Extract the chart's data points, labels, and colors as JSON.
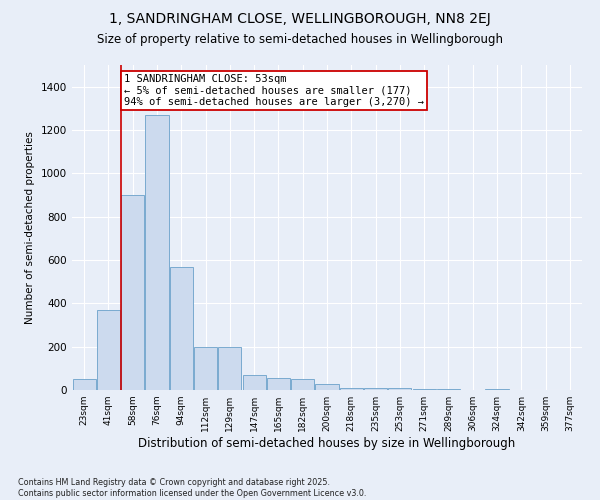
{
  "title": "1, SANDRINGHAM CLOSE, WELLINGBOROUGH, NN8 2EJ",
  "subtitle": "Size of property relative to semi-detached houses in Wellingborough",
  "xlabel": "Distribution of semi-detached houses by size in Wellingborough",
  "ylabel": "Number of semi-detached properties",
  "bins": [
    "23sqm",
    "41sqm",
    "58sqm",
    "76sqm",
    "94sqm",
    "112sqm",
    "129sqm",
    "147sqm",
    "165sqm",
    "182sqm",
    "200sqm",
    "218sqm",
    "235sqm",
    "253sqm",
    "271sqm",
    "289sqm",
    "306sqm",
    "324sqm",
    "342sqm",
    "359sqm",
    "377sqm"
  ],
  "bar_values": [
    50,
    370,
    900,
    1270,
    570,
    200,
    200,
    70,
    55,
    50,
    30,
    10,
    10,
    10,
    5,
    5,
    0,
    3,
    0,
    0,
    0
  ],
  "bar_color": "#ccdaee",
  "bar_edge_color": "#7aaacf",
  "property_label": "1 SANDRINGHAM CLOSE: 53sqm",
  "annotation_line1": "← 5% of semi-detached houses are smaller (177)",
  "annotation_line2": "94% of semi-detached houses are larger (3,270) →",
  "annotation_box_color": "#ffffff",
  "annotation_box_edge": "#cc0000",
  "red_line_color": "#cc0000",
  "red_line_x": 1.5,
  "ylim": [
    0,
    1500
  ],
  "yticks": [
    0,
    200,
    400,
    600,
    800,
    1000,
    1200,
    1400
  ],
  "bg_color": "#e8eef8",
  "fig_bg_color": "#e8eef8",
  "footer": "Contains HM Land Registry data © Crown copyright and database right 2025.\nContains public sector information licensed under the Open Government Licence v3.0.",
  "title_fontsize": 10,
  "subtitle_fontsize": 8.5,
  "xlabel_fontsize": 8.5,
  "ylabel_fontsize": 7.5,
  "annotation_fontsize": 7.5
}
